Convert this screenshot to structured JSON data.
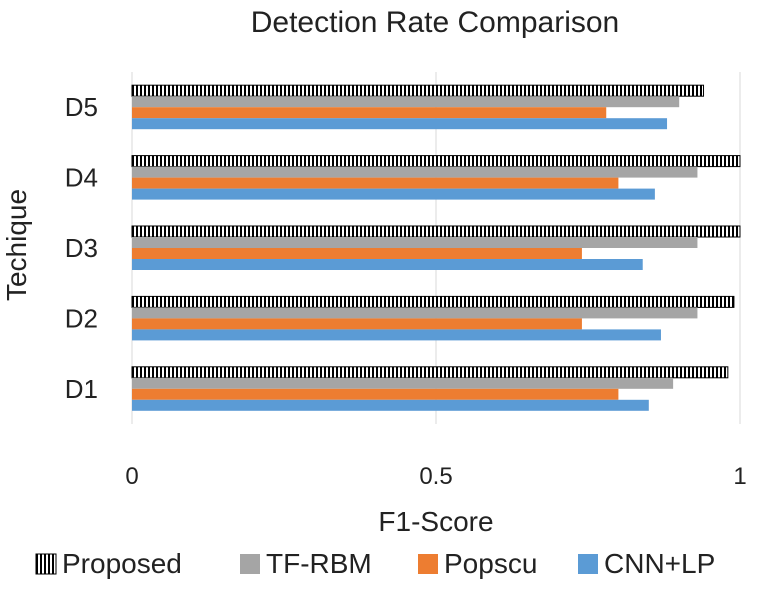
{
  "chart_data": {
    "type": "bar",
    "orientation": "horizontal",
    "title": "Detection Rate Comparison",
    "xlabel": "F1-Score",
    "ylabel": "Techique",
    "xlim": [
      0,
      1
    ],
    "xticks": [
      0,
      0.5,
      1
    ],
    "xtick_labels": [
      "0",
      "0.5",
      "1"
    ],
    "grid": "vertical",
    "legend_position": "bottom",
    "categories": [
      "D1",
      "D2",
      "D3",
      "D4",
      "D5"
    ],
    "series": [
      {
        "name": "Proposed",
        "values": [
          0.98,
          0.99,
          1.0,
          1.0,
          0.94
        ],
        "color": "#000000",
        "pattern": "vertical-stripes"
      },
      {
        "name": "TF-RBM",
        "values": [
          0.89,
          0.93,
          0.93,
          0.93,
          0.9
        ],
        "color": "#a5a5a5"
      },
      {
        "name": "Popscu",
        "values": [
          0.8,
          0.74,
          0.74,
          0.8,
          0.78
        ],
        "color": "#ed7d31"
      },
      {
        "name": "CNN+LP",
        "values": [
          0.85,
          0.87,
          0.84,
          0.86,
          0.88
        ],
        "color": "#5b9bd5"
      }
    ]
  }
}
